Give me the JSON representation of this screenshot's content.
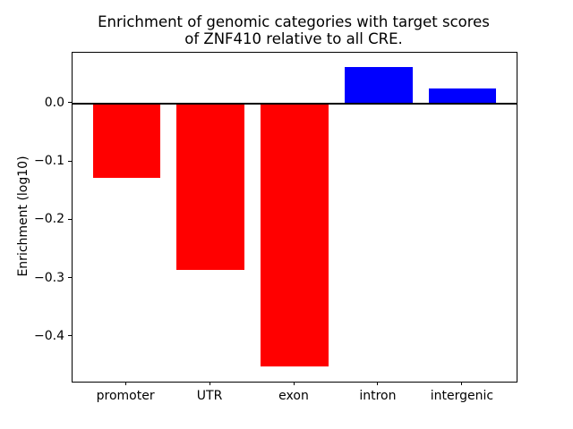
{
  "figure": {
    "title_lines": [
      "Enrichment of genomic categories with target scores",
      "of ZNF410 relative to all CRE."
    ]
  },
  "chart_data": {
    "type": "bar",
    "title": "Enrichment of genomic categories with target scores\nof ZNF410 relative to all CRE.",
    "xlabel": "",
    "ylabel": "Enrichment (log10)",
    "categories": [
      "promoter",
      "UTR",
      "exon",
      "intron",
      "intergenic"
    ],
    "values": [
      -0.128,
      -0.285,
      -0.451,
      0.062,
      0.025
    ],
    "bar_colors": [
      "#ff0000",
      "#ff0000",
      "#ff0000",
      "#0000ff",
      "#0000ff"
    ],
    "negative_color": "#ff0000",
    "positive_color": "#0000ff",
    "bar_width_fraction": 0.8,
    "ylim": [
      -0.477,
      0.087
    ],
    "xlim": [
      -0.64,
      4.64
    ],
    "yticks": [
      0.0,
      -0.1,
      -0.2,
      -0.3,
      -0.4
    ],
    "ytick_labels": [
      "0.0",
      "−0.1",
      "−0.2",
      "−0.3",
      "−0.4"
    ],
    "zero_line": true,
    "grid": false,
    "legend": null
  }
}
